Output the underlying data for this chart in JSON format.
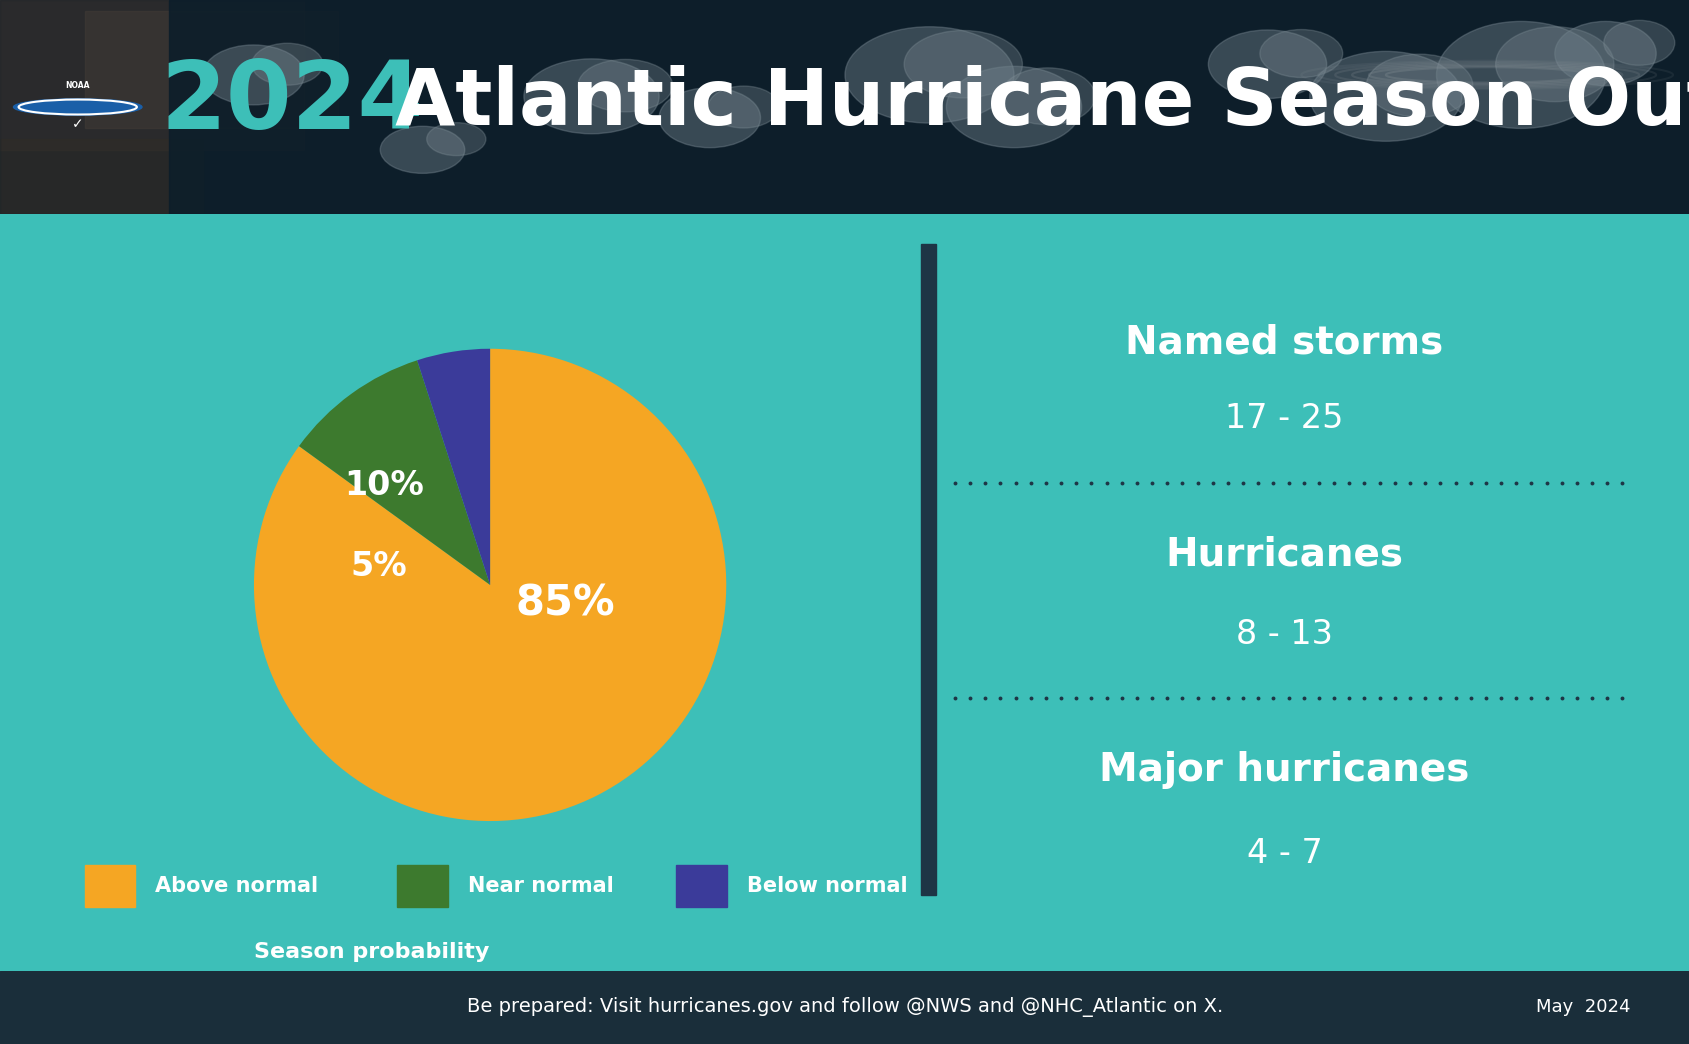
{
  "title_year": "2024",
  "title_rest": " Atlantic Hurricane Season Outlook",
  "teal_color": "#3dbfb8",
  "background_teal": "#3dbfb8",
  "pie_values": [
    85,
    10,
    5
  ],
  "pie_colors": [
    "#f5a623",
    "#3d7a2e",
    "#3b3b9a"
  ],
  "pie_labels": [
    "85%",
    "10%",
    "5%"
  ],
  "legend_labels": [
    "Above normal",
    "Near normal",
    "Below normal"
  ],
  "season_prob_label": "Season probability",
  "named_storms_label": "Named storms",
  "named_storms_range": "17 - 25",
  "hurricanes_label": "Hurricanes",
  "hurricanes_range": "8 - 13",
  "major_label": "Major hurricanes",
  "major_range": "4 - 7",
  "footer_text": "Be prepared: Visit hurricanes.gov and follow @NWS and @NHC_Atlantic on X.",
  "footer_date": "May  2024",
  "footer_bg": "#1a2e3a",
  "divider_color": "#1e3545"
}
